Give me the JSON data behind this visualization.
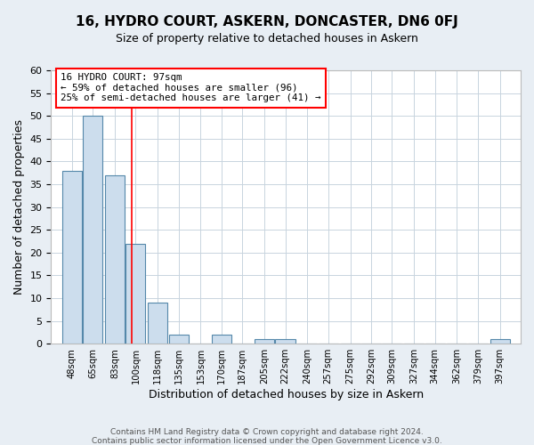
{
  "title": "16, HYDRO COURT, ASKERN, DONCASTER, DN6 0FJ",
  "subtitle": "Size of property relative to detached houses in Askern",
  "xlabel": "Distribution of detached houses by size in Askern",
  "ylabel": "Number of detached properties",
  "bin_labels": [
    "48sqm",
    "65sqm",
    "83sqm",
    "100sqm",
    "118sqm",
    "135sqm",
    "153sqm",
    "170sqm",
    "187sqm",
    "205sqm",
    "222sqm",
    "240sqm",
    "257sqm",
    "275sqm",
    "292sqm",
    "309sqm",
    "327sqm",
    "344sqm",
    "362sqm",
    "379sqm",
    "397sqm"
  ],
  "bar_values": [
    38,
    50,
    37,
    22,
    9,
    2,
    0,
    2,
    0,
    1,
    1,
    0,
    0,
    0,
    0,
    0,
    0,
    0,
    0,
    0,
    1
  ],
  "bar_color": "#ccdded",
  "bar_edgecolor": "#5588aa",
  "red_line_value": 97,
  "ann_line1": "16 HYDRO COURT: 97sqm",
  "ann_line2": "← 59% of detached houses are smaller (96)",
  "ann_line3": "25% of semi-detached houses are larger (41) →",
  "ylim": [
    0,
    60
  ],
  "yticks": [
    0,
    5,
    10,
    15,
    20,
    25,
    30,
    35,
    40,
    45,
    50,
    55,
    60
  ],
  "footer_line1": "Contains HM Land Registry data © Crown copyright and database right 2024.",
  "footer_line2": "Contains public sector information licensed under the Open Government Licence v3.0.",
  "bg_color": "#e8eef4",
  "plot_bg_color": "#ffffff",
  "grid_color": "#c8d4de"
}
